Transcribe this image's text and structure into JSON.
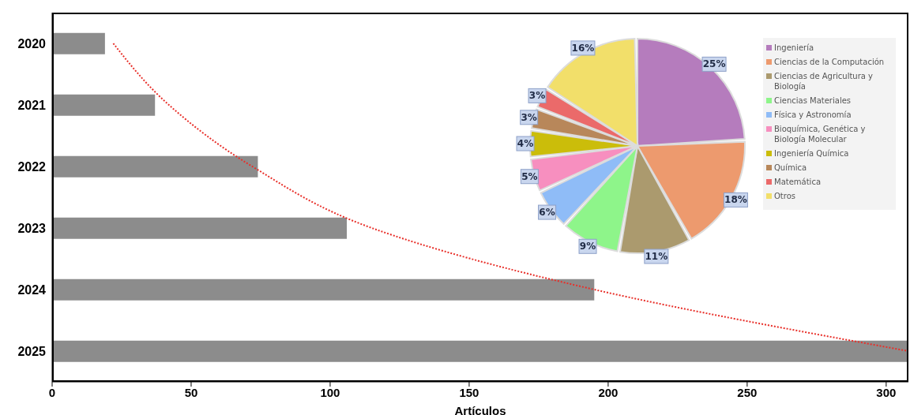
{
  "chart_data": [
    {
      "type": "bar",
      "orientation": "horizontal",
      "xlabel": "Artículos",
      "categories": [
        "2020",
        "2021",
        "2022",
        "2023",
        "2024",
        "2025"
      ],
      "series": [
        {
          "type": "bar",
          "color": "#8c8c8c",
          "values": [
            19,
            37,
            74,
            106,
            195,
            308
          ]
        },
        {
          "type": "line",
          "color": "#e8302a",
          "line_style": "dotted",
          "values": [
            22,
            42,
            72,
            115,
            195,
            308
          ]
        }
      ],
      "xlim": [
        0,
        308
      ],
      "xticks": [
        0,
        50,
        100,
        150,
        200,
        250,
        300
      ]
    },
    {
      "type": "pie",
      "categories": [
        "Ingeniería",
        "Ciencias de la Computación",
        "Ciencias de Agricultura y Biología",
        "Ciencias Materiales",
        "Física y Astronomía",
        "Bioquímica, Genética y Biología Molecular",
        "Ingeniería Química",
        "Química",
        "Matemática",
        "Otros"
      ],
      "values": [
        25,
        18,
        11,
        9,
        6,
        5,
        4,
        3,
        3,
        16
      ],
      "colors": [
        "#b57cbd",
        "#ed9a6e",
        "#ab9a6e",
        "#8ef58a",
        "#8fbcf7",
        "#f78fbf",
        "#cbbd0a",
        "#b8875a",
        "#eb6a6a",
        "#f2df6a"
      ],
      "value_labels": [
        "25%",
        "18%",
        "11%",
        "9%",
        "6%",
        "5%",
        "4%",
        "3%",
        "3%",
        "16%"
      ],
      "legend": "right"
    }
  ]
}
